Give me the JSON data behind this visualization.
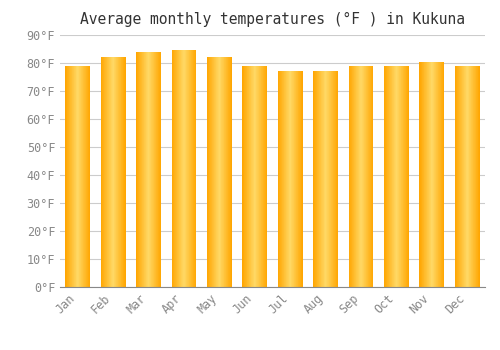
{
  "title": "Average monthly temperatures (°F ) in Kukuna",
  "months": [
    "Jan",
    "Feb",
    "Mar",
    "Apr",
    "May",
    "Jun",
    "Jul",
    "Aug",
    "Sep",
    "Oct",
    "Nov",
    "Dec"
  ],
  "values": [
    79,
    82,
    84,
    84.5,
    82,
    79,
    77,
    77,
    79,
    79,
    80.5,
    79
  ],
  "bar_color_center": "#FFD966",
  "bar_color_edge": "#FFA500",
  "background_color": "#FFFFFF",
  "grid_color": "#CCCCCC",
  "ylim": [
    0,
    90
  ],
  "yticks": [
    0,
    10,
    20,
    30,
    40,
    50,
    60,
    70,
    80,
    90
  ],
  "ytick_labels": [
    "0°F",
    "10°F",
    "20°F",
    "30°F",
    "40°F",
    "50°F",
    "60°F",
    "70°F",
    "80°F",
    "90°F"
  ],
  "title_fontsize": 10.5,
  "tick_fontsize": 8.5,
  "font_family": "monospace",
  "bar_width": 0.7,
  "n_gradient_steps": 60
}
